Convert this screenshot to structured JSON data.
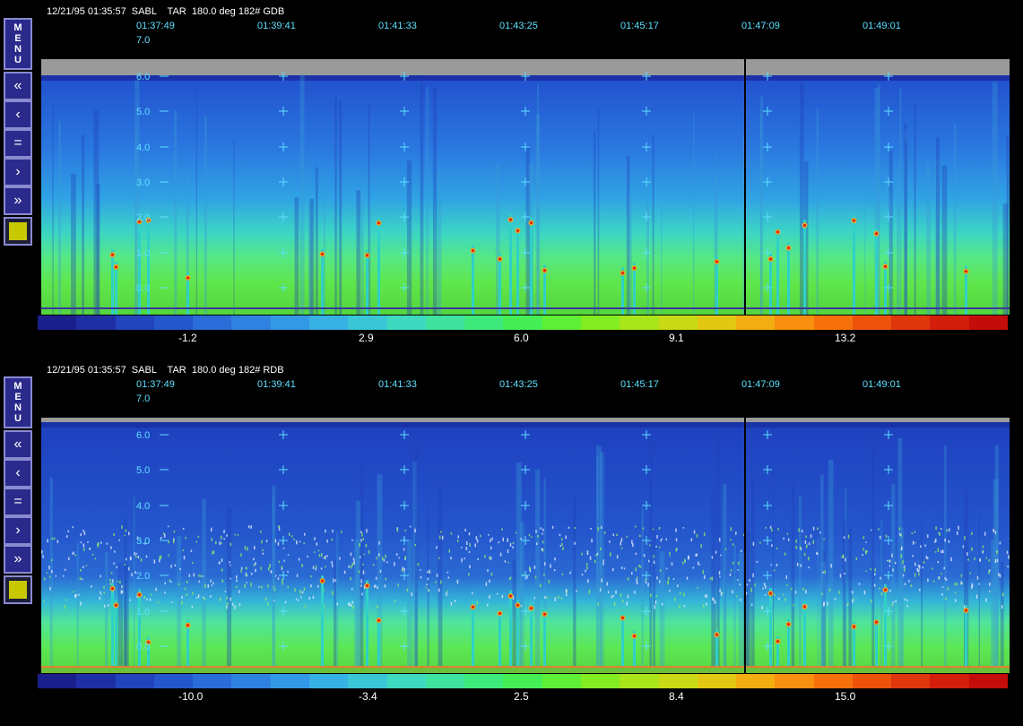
{
  "panels": [
    {
      "header": "12/21/95 01:35:57  SABL    TAR  180.0 deg 182# GDB",
      "times": [
        "01:37:49",
        "01:39:41",
        "01:41:33",
        "01:43:25",
        "01:45:17",
        "01:47:09",
        "01:49:01"
      ],
      "top_altitude": "7.0",
      "altitudes": [
        "6.0",
        "5.0",
        "4.0",
        "3.0",
        "2.0",
        "1.0",
        "0.0"
      ],
      "colorbar_labels": [
        "-1.2",
        "2.9",
        "6.0",
        "9.1",
        "13.2"
      ],
      "toolbar": {
        "menu_letters": [
          "M",
          "E",
          "N",
          "U"
        ],
        "rewind": "«",
        "back": "‹",
        "equal": "=",
        "forward": "›",
        "fast_forward": "»"
      }
    },
    {
      "header": "12/21/95 01:35:57  SABL    TAR  180.0 deg 182# RDB",
      "times": [
        "01:37:49",
        "01:39:41",
        "01:41:33",
        "01:43:25",
        "01:45:17",
        "01:47:09",
        "01:49:01"
      ],
      "top_altitude": "7.0",
      "altitudes": [
        "6.0",
        "5.0",
        "4.0",
        "3.0",
        "2.0",
        "1.0",
        "0.0"
      ],
      "colorbar_labels": [
        "-10.0",
        "-3.4",
        "2.5",
        "8.4",
        "15.0"
      ],
      "toolbar": {
        "menu_letters": [
          "M",
          "E",
          "N",
          "U"
        ],
        "rewind": "«",
        "back": "‹",
        "equal": "=",
        "forward": "›",
        "fast_forward": "»"
      }
    }
  ],
  "colors": {
    "colorbar": [
      "#1a1f8c",
      "#1e2fa6",
      "#2244bd",
      "#2557cc",
      "#2a6cd8",
      "#2f82e0",
      "#3399e6",
      "#37b0e3",
      "#3bc6d5",
      "#3fd9bf",
      "#3fe39f",
      "#3fea7c",
      "#45ee55",
      "#5fef36",
      "#84ec22",
      "#a8e51a",
      "#c8da16",
      "#e2c813",
      "#f2ad10",
      "#f88f0e",
      "#f6700c",
      "#ec520b",
      "#e0360b",
      "#d21e0b",
      "#c40c0b"
    ],
    "accent_text": "#5fe0ff",
    "swatch": "#c8c800"
  }
}
